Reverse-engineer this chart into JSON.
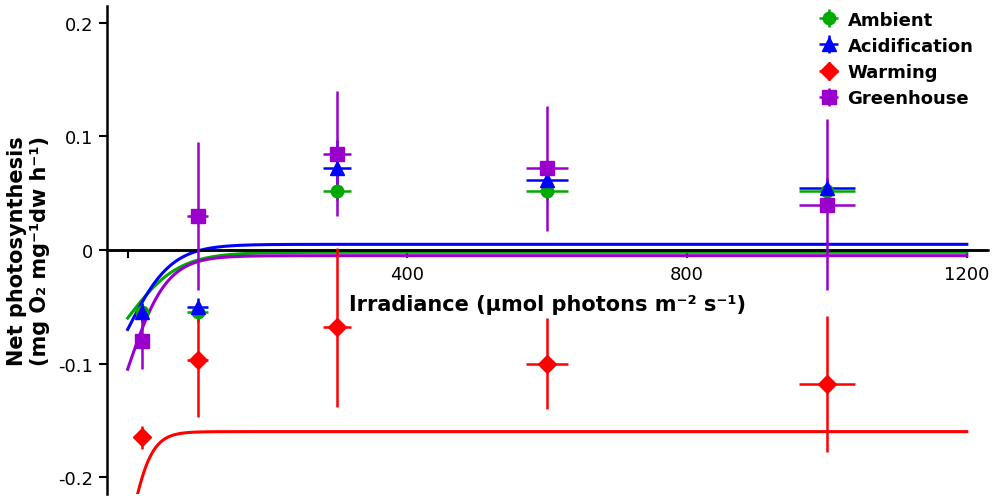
{
  "series": [
    {
      "name": "Ambient",
      "color": "#00aa00",
      "marker": "o",
      "markersize": 9,
      "linewidth": 2.2,
      "x": [
        20,
        100,
        300,
        600,
        1000
      ],
      "y": [
        -0.055,
        -0.055,
        0.052,
        0.052,
        0.052
      ],
      "yerr": [
        0.008,
        0.008,
        0.008,
        0.008,
        0.008
      ],
      "xerr": [
        0,
        15,
        20,
        30,
        40
      ],
      "pi_Pmax": 0.058,
      "pi_alpha": 0.0008,
      "pi_Rd": 0.06
    },
    {
      "name": "Acidification",
      "color": "#0000ff",
      "marker": "^",
      "markersize": 10,
      "linewidth": 2.2,
      "x": [
        20,
        100,
        300,
        600,
        1000
      ],
      "y": [
        -0.055,
        -0.05,
        0.072,
        0.062,
        0.055
      ],
      "yerr": [
        0.008,
        0.008,
        0.025,
        0.008,
        0.008
      ],
      "xerr": [
        0,
        15,
        20,
        30,
        40
      ],
      "pi_Pmax": 0.075,
      "pi_alpha": 0.0012,
      "pi_Rd": 0.07
    },
    {
      "name": "Warming",
      "color": "#ff0000",
      "marker": "D",
      "markersize": 9,
      "linewidth": 2.2,
      "x": [
        20,
        100,
        300,
        600,
        1000
      ],
      "y": [
        -0.165,
        -0.097,
        -0.068,
        -0.1,
        -0.118
      ],
      "yerr": [
        0.01,
        0.05,
        0.07,
        0.04,
        0.06
      ],
      "xerr": [
        0,
        15,
        20,
        30,
        40
      ],
      "pi_Pmax": 0.095,
      "pi_alpha": 0.003,
      "pi_Rd": 0.255
    },
    {
      "name": "Greenhouse",
      "color": "#9900cc",
      "marker": "s",
      "markersize": 10,
      "linewidth": 2.2,
      "x": [
        20,
        100,
        300,
        600,
        1000
      ],
      "y": [
        -0.08,
        0.03,
        0.085,
        0.072,
        0.04
      ],
      "yerr": [
        0.025,
        0.065,
        0.055,
        0.055,
        0.075
      ],
      "xerr": [
        0,
        15,
        20,
        30,
        40
      ],
      "pi_Pmax": 0.1,
      "pi_alpha": 0.0018,
      "pi_Rd": 0.105
    }
  ],
  "xlabel": "Irradiance (μmol photons m⁻² s⁻¹)",
  "ylabel": "Net photosynthesis\n(mg O₂ mg⁻¹dw h⁻¹)",
  "xlim": [
    -30,
    1230
  ],
  "ylim": [
    -0.215,
    0.215
  ],
  "xticks": [
    0,
    400,
    800,
    1200
  ],
  "yticks": [
    -0.2,
    -0.1,
    0,
    0.1,
    0.2
  ],
  "background_color": "#ffffff",
  "label_fontsize": 15,
  "tick_fontsize": 13,
  "legend_fontsize": 13
}
